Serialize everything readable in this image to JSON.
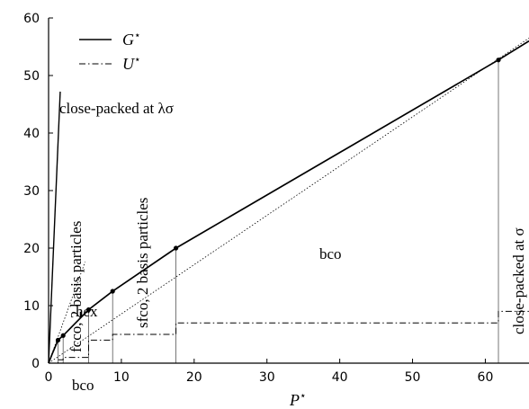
{
  "chart_data": {
    "type": "line",
    "xlabel": "P",
    "xlabel_sup": "⋆",
    "ylabel": "",
    "xlim": [
      0,
      66
    ],
    "ylim": [
      0,
      60
    ],
    "xticks": [
      0,
      10,
      20,
      30,
      40,
      50,
      60
    ],
    "yticks": [
      0,
      10,
      20,
      30,
      40,
      50,
      60
    ],
    "legend": {
      "placement": "top-left",
      "entries": [
        {
          "name": "G",
          "sup": "⋆",
          "style": "solid"
        },
        {
          "name": "U",
          "sup": "⋆",
          "style": "dashdot"
        }
      ]
    },
    "series": [
      {
        "name": "G⋆",
        "style": "solid",
        "x": [
          0,
          0.5,
          1.3,
          2.0,
          5.5,
          8.8,
          17.5,
          61.8,
          66
        ],
        "y": [
          0,
          1.6,
          4.0,
          4.8,
          9.3,
          12.5,
          20.0,
          52.7,
          56.0
        ]
      },
      {
        "name": "U⋆",
        "style": "dashdot",
        "x": [
          0,
          1.3,
          1.3,
          2.0,
          2.0,
          5.5,
          5.5,
          8.8,
          8.8,
          17.5,
          17.5,
          61.8,
          61.8,
          66
        ],
        "y": [
          0,
          0,
          0.6,
          0.6,
          1.0,
          1.0,
          4.0,
          4.0,
          5.0,
          5.0,
          7.0,
          7.0,
          9.0,
          9.0
        ]
      }
    ],
    "dotted_lines": [
      {
        "x": [
          0,
          66
        ],
        "y": [
          0,
          56.5
        ]
      },
      {
        "x": [
          0,
          5.0
        ],
        "y": [
          0,
          17.6
        ]
      }
    ],
    "steep_line": {
      "x": [
        0,
        1.6
      ],
      "y": [
        0,
        47.2
      ]
    },
    "transition_points": [
      {
        "x": 1.3,
        "y": 4.0
      },
      {
        "x": 2.0,
        "y": 4.8
      },
      {
        "x": 5.5,
        "y": 9.3
      },
      {
        "x": 8.8,
        "y": 12.5
      },
      {
        "x": 17.5,
        "y": 20.0
      },
      {
        "x": 61.8,
        "y": 52.7
      }
    ],
    "annotations": {
      "close_packed_lambda": "close-packed at λσ",
      "fcco": "fcco, 2 basis particles",
      "hex": "hex",
      "sfco": "sfco, 2 basis particles",
      "bco_mid": "bco",
      "bco_low": "bco",
      "close_packed_sigma": "close-packed at σ"
    }
  }
}
